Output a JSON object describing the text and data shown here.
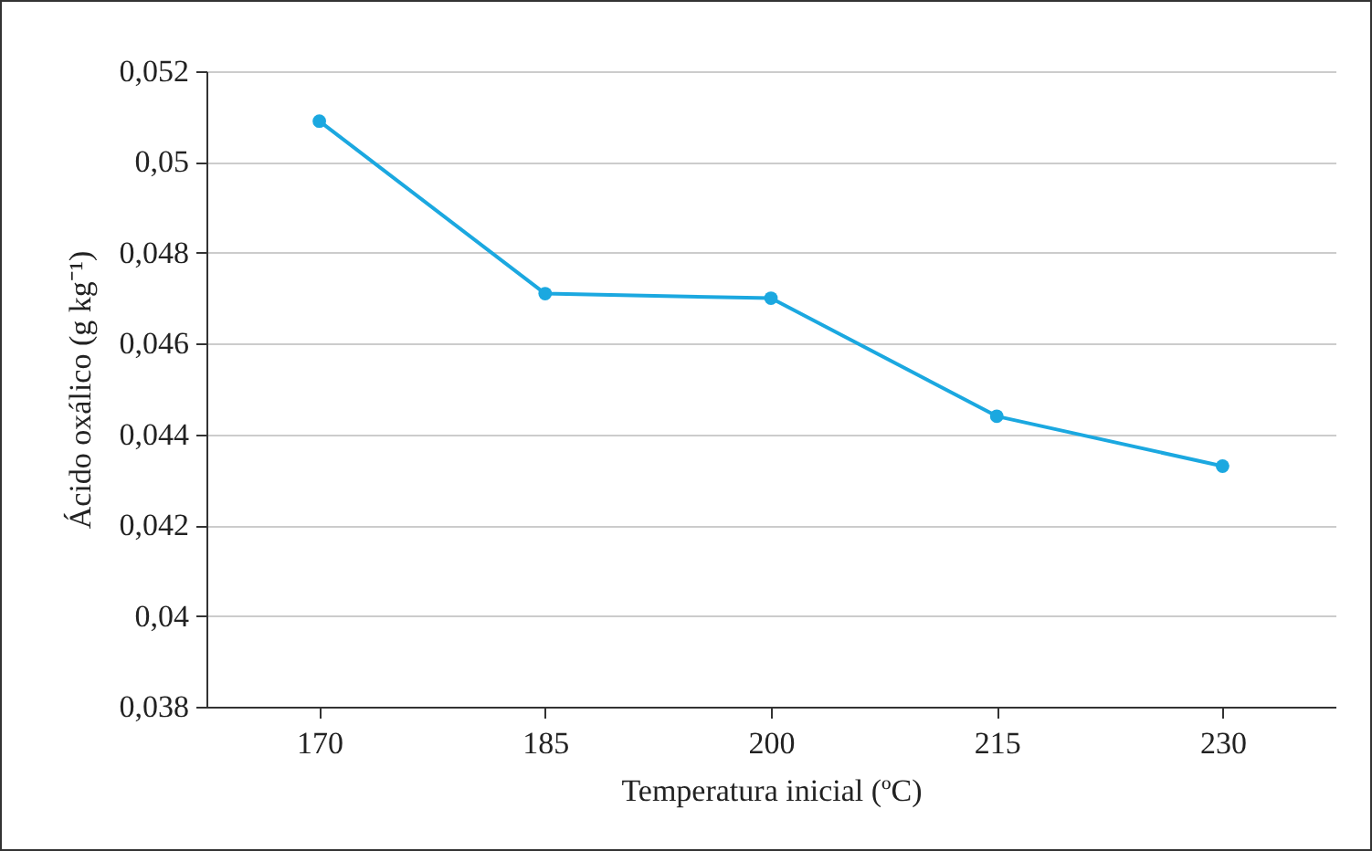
{
  "chart_data": {
    "type": "line",
    "xlabel": "Temperatura inicial (ºC)",
    "ylabel": "Ácido oxálico (g kg⁻¹)",
    "categories": [
      "170",
      "185",
      "200",
      "215",
      "230"
    ],
    "series": [
      {
        "color": "#1ba8e0",
        "values": [
          0.0509,
          0.0471,
          0.047,
          0.0444,
          0.0433
        ]
      }
    ],
    "ylim": [
      0.038,
      0.052
    ],
    "yticks": [
      {
        "value": 0.038,
        "label": "0,038"
      },
      {
        "value": 0.04,
        "label": "0,04"
      },
      {
        "value": 0.042,
        "label": "0,042"
      },
      {
        "value": 0.044,
        "label": "0,044"
      },
      {
        "value": 0.046,
        "label": "0,046"
      },
      {
        "value": 0.048,
        "label": "0,048"
      },
      {
        "value": 0.05,
        "label": "0,05"
      },
      {
        "value": 0.052,
        "label": "0,052"
      }
    ],
    "grid": "y",
    "marker": "circle",
    "line_style": "solid"
  }
}
